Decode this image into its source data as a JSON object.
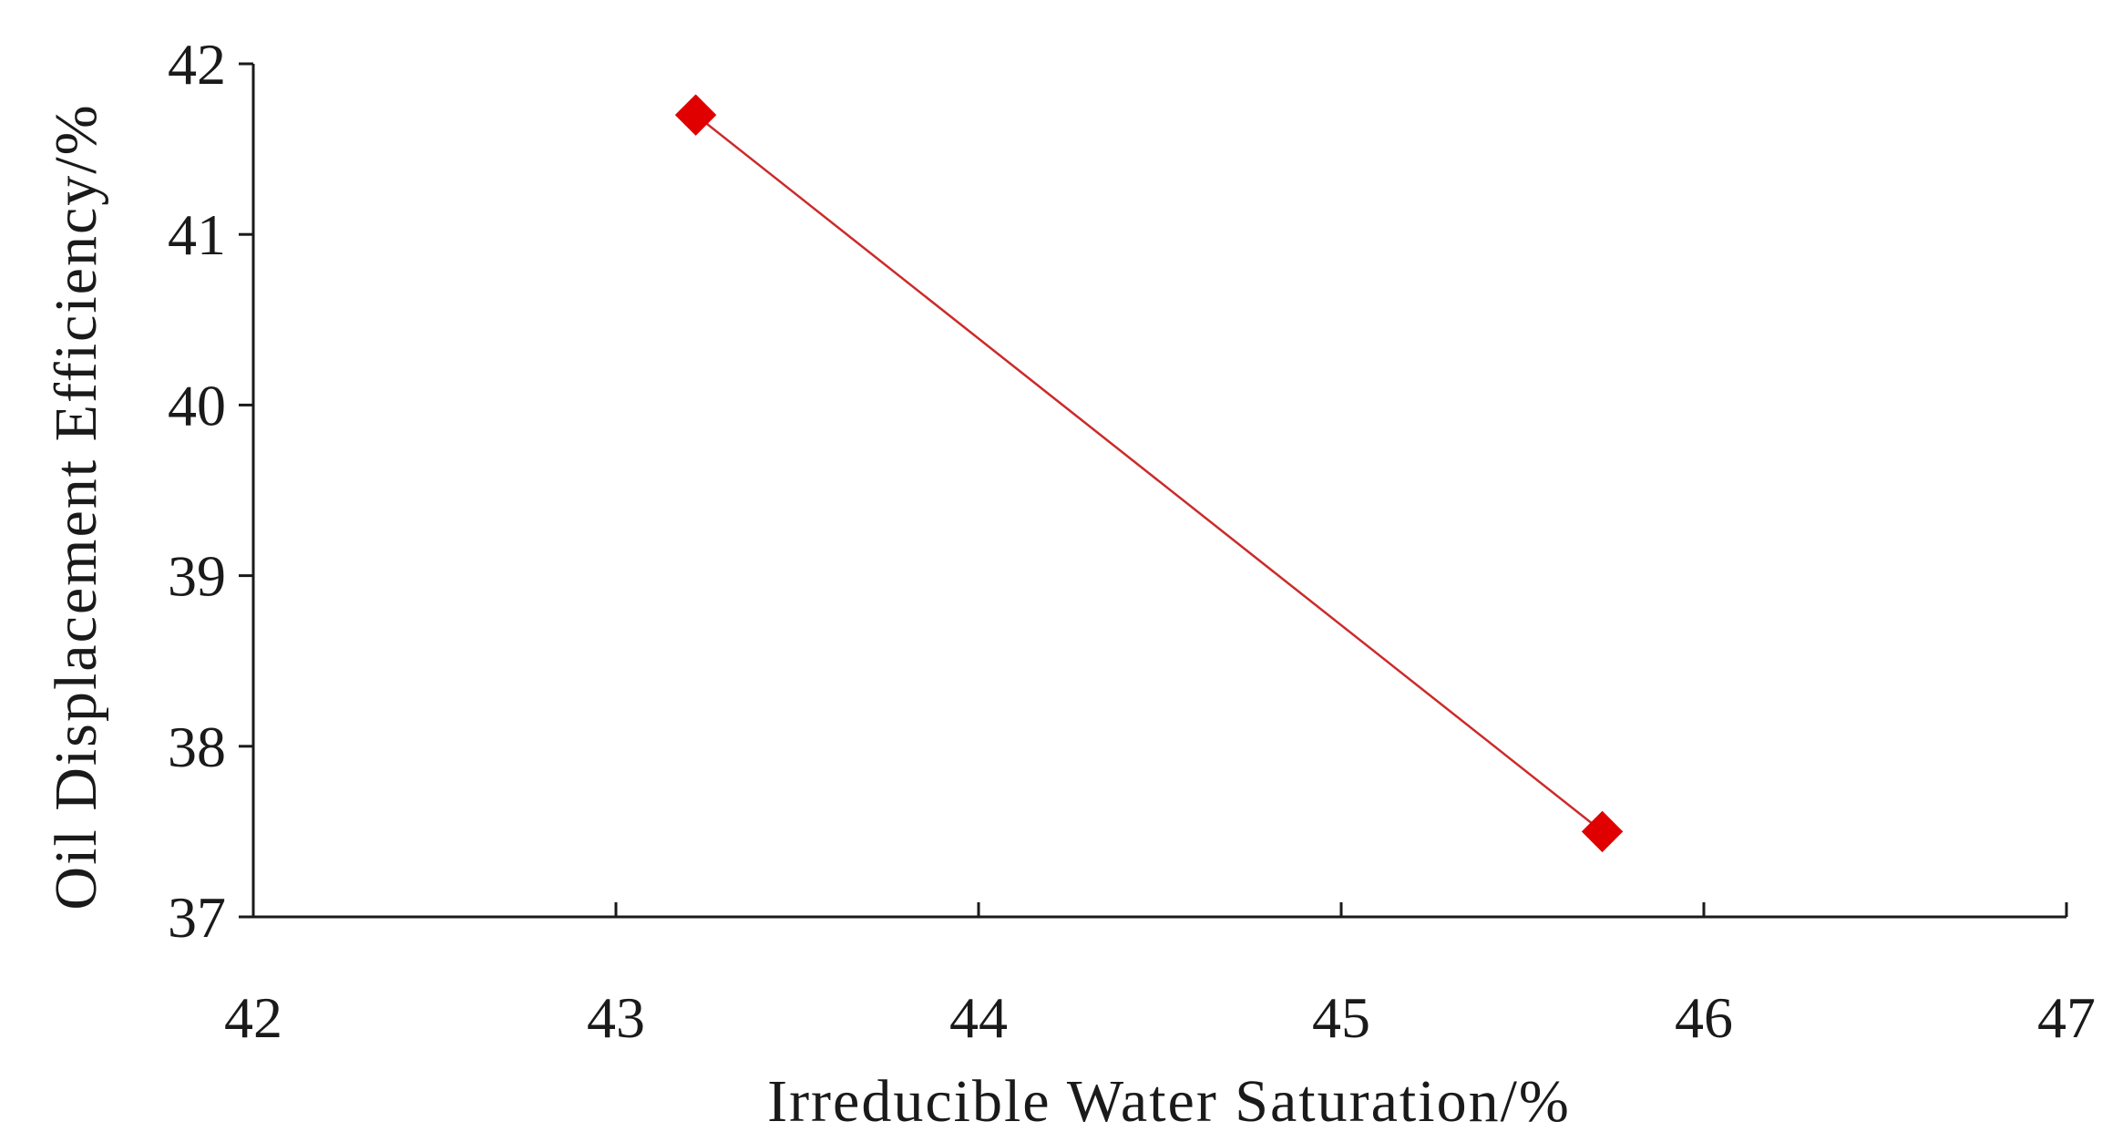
{
  "chart_data": {
    "type": "line",
    "title": "",
    "xlabel": "Irreducible Water Saturation/%",
    "ylabel": "Oil Displacement Efficiency/%",
    "xlim": [
      42,
      47
    ],
    "ylim": [
      37,
      42
    ],
    "xticks": [
      42,
      43,
      44,
      45,
      46,
      47
    ],
    "yticks": [
      37,
      38,
      39,
      40,
      41,
      42
    ],
    "grid": false,
    "series": [
      {
        "name": "",
        "marker": "diamond",
        "color": "#e00000",
        "line_color": "#cc2a2a",
        "x": [
          43.22,
          45.72
        ],
        "y": [
          41.7,
          37.5
        ]
      }
    ]
  }
}
